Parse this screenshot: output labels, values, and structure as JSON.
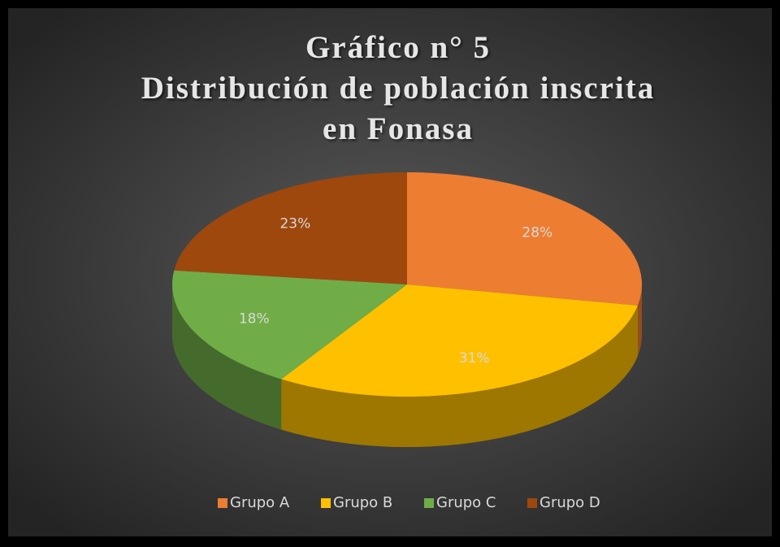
{
  "chart_data": {
    "type": "pie3d",
    "title": [
      "Gráfico n° 5",
      "Distribución de población inscrita",
      "en Fonasa"
    ],
    "categories": [
      "Grupo A",
      "Grupo B",
      "Grupo C",
      "Grupo D"
    ],
    "values": [
      28,
      31,
      18,
      23
    ],
    "value_labels": [
      "28%",
      "31%",
      "18%",
      "23%"
    ],
    "colors": [
      "#ed7d31",
      "#ffc000",
      "#70ad47",
      "#9e480e"
    ],
    "legend": "bottom"
  }
}
